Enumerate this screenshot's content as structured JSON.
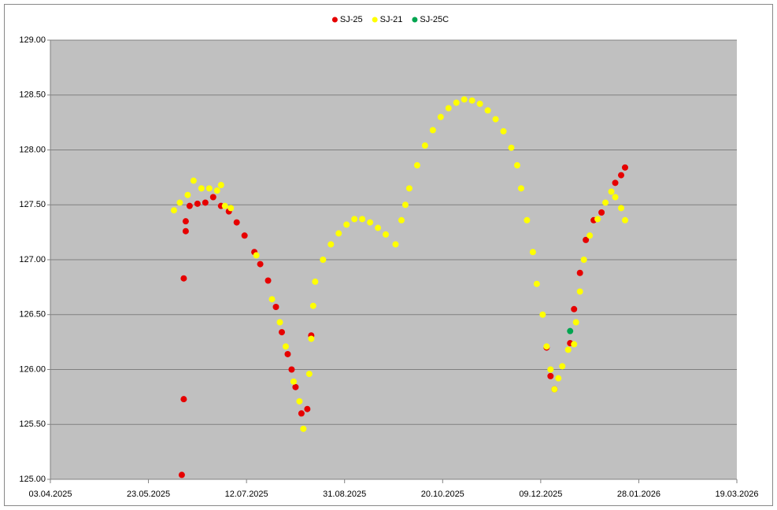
{
  "chart_data": {
    "type": "scatter",
    "xlim": [
      "03.04.2025",
      "19.03.2026"
    ],
    "xticks": [
      "03.04.2025",
      "23.05.2025",
      "12.07.2025",
      "31.08.2025",
      "20.10.2025",
      "09.12.2025",
      "28.01.2026",
      "19.03.2026"
    ],
    "ylim": [
      125,
      129
    ],
    "yticks": [
      {
        "value": 125,
        "label": "125.00"
      },
      {
        "value": 125.5,
        "label": "125.50"
      },
      {
        "value": 126,
        "label": "126.00"
      },
      {
        "value": 126.5,
        "label": "126.50"
      },
      {
        "value": 127,
        "label": "127.00"
      },
      {
        "value": 127.5,
        "label": "127.50"
      },
      {
        "value": 128,
        "label": "128.00"
      },
      {
        "value": 128.5,
        "label": "128.50"
      },
      {
        "value": 129,
        "label": "129.00"
      }
    ],
    "grid": true,
    "legend": "top",
    "series": [
      {
        "name": "SJ-25",
        "color": "#e60000",
        "x": [
          "09.06.2025",
          "10.06.2025",
          "10.06.2025",
          "11.06.2025",
          "11.06.2025",
          "13.06.2025",
          "17.06.2025",
          "21.06.2025",
          "25.06.2025",
          "29.06.2025",
          "03.07.2025",
          "07.07.2025",
          "11.07.2025",
          "16.07.2025",
          "19.07.2025",
          "23.07.2025",
          "27.07.2025",
          "30.07.2025",
          "02.08.2025",
          "04.08.2025",
          "06.08.2025",
          "09.08.2025",
          "12.08.2025",
          "14.08.2025",
          "12.12.2025",
          "14.12.2025",
          "16.12.2025",
          "24.12.2025",
          "26.12.2025",
          "29.12.2025",
          "01.01.2026",
          "05.01.2026",
          "09.01.2026",
          "16.01.2026",
          "19.01.2026",
          "21.01.2026"
        ],
        "values": [
          125.04,
          125.73,
          126.83,
          127.26,
          127.35,
          127.49,
          127.51,
          127.52,
          127.57,
          127.49,
          127.44,
          127.34,
          127.22,
          127.07,
          126.96,
          126.81,
          126.57,
          126.34,
          126.14,
          126.0,
          125.84,
          125.6,
          125.64,
          126.31,
          126.2,
          125.94,
          125.82,
          126.24,
          126.55,
          126.88,
          127.18,
          127.36,
          127.43,
          127.7,
          127.77,
          127.84
        ]
      },
      {
        "name": "SJ-21",
        "color": "#ffff00",
        "x": [
          "05.06.2025",
          "08.06.2025",
          "12.06.2025",
          "15.06.2025",
          "19.06.2025",
          "23.06.2025",
          "27.06.2025",
          "29.06.2025",
          "01.07.2025",
          "04.07.2025",
          "17.07.2025",
          "25.07.2025",
          "29.07.2025",
          "01.08.2025",
          "05.08.2025",
          "08.08.2025",
          "10.08.2025",
          "13.08.2025",
          "14.08.2025",
          "15.08.2025",
          "16.08.2025",
          "20.08.2025",
          "24.08.2025",
          "28.08.2025",
          "01.09.2025",
          "05.09.2025",
          "09.09.2025",
          "13.09.2025",
          "17.09.2025",
          "21.09.2025",
          "26.09.2025",
          "29.09.2025",
          "01.10.2025",
          "03.10.2025",
          "07.10.2025",
          "11.10.2025",
          "15.10.2025",
          "19.10.2025",
          "23.10.2025",
          "27.10.2025",
          "31.10.2025",
          "04.11.2025",
          "08.11.2025",
          "12.11.2025",
          "16.11.2025",
          "20.11.2025",
          "24.11.2025",
          "27.11.2025",
          "29.11.2025",
          "02.12.2025",
          "05.12.2025",
          "07.12.2025",
          "10.12.2025",
          "12.12.2025",
          "14.12.2025",
          "16.12.2025",
          "18.12.2025",
          "20.12.2025",
          "23.12.2025",
          "26.12.2025",
          "27.12.2025",
          "29.12.2025",
          "31.12.2025",
          "03.01.2026",
          "07.01.2026",
          "11.01.2026",
          "14.01.2026",
          "16.01.2026",
          "19.01.2026",
          "21.01.2026"
        ],
        "values": [
          127.45,
          127.52,
          127.59,
          127.72,
          127.65,
          127.65,
          127.63,
          127.68,
          127.49,
          127.47,
          127.04,
          126.64,
          126.43,
          126.21,
          125.89,
          125.71,
          125.46,
          125.96,
          126.28,
          126.58,
          126.8,
          127.0,
          127.14,
          127.24,
          127.32,
          127.37,
          127.37,
          127.34,
          127.29,
          127.23,
          127.14,
          127.36,
          127.5,
          127.65,
          127.86,
          128.04,
          128.18,
          128.3,
          128.38,
          128.43,
          128.46,
          128.45,
          128.42,
          128.36,
          128.28,
          128.17,
          128.02,
          127.86,
          127.65,
          127.36,
          127.07,
          126.78,
          126.5,
          126.21,
          126.0,
          125.82,
          125.92,
          126.03,
          126.18,
          126.23,
          126.43,
          126.71,
          127.0,
          127.22,
          127.37,
          127.52,
          127.62,
          127.57,
          127.47,
          127.36
        ]
      },
      {
        "name": "SJ-25C",
        "color": "#00a550",
        "x": [
          "24.12.2025"
        ],
        "values": [
          126.35
        ]
      }
    ]
  }
}
